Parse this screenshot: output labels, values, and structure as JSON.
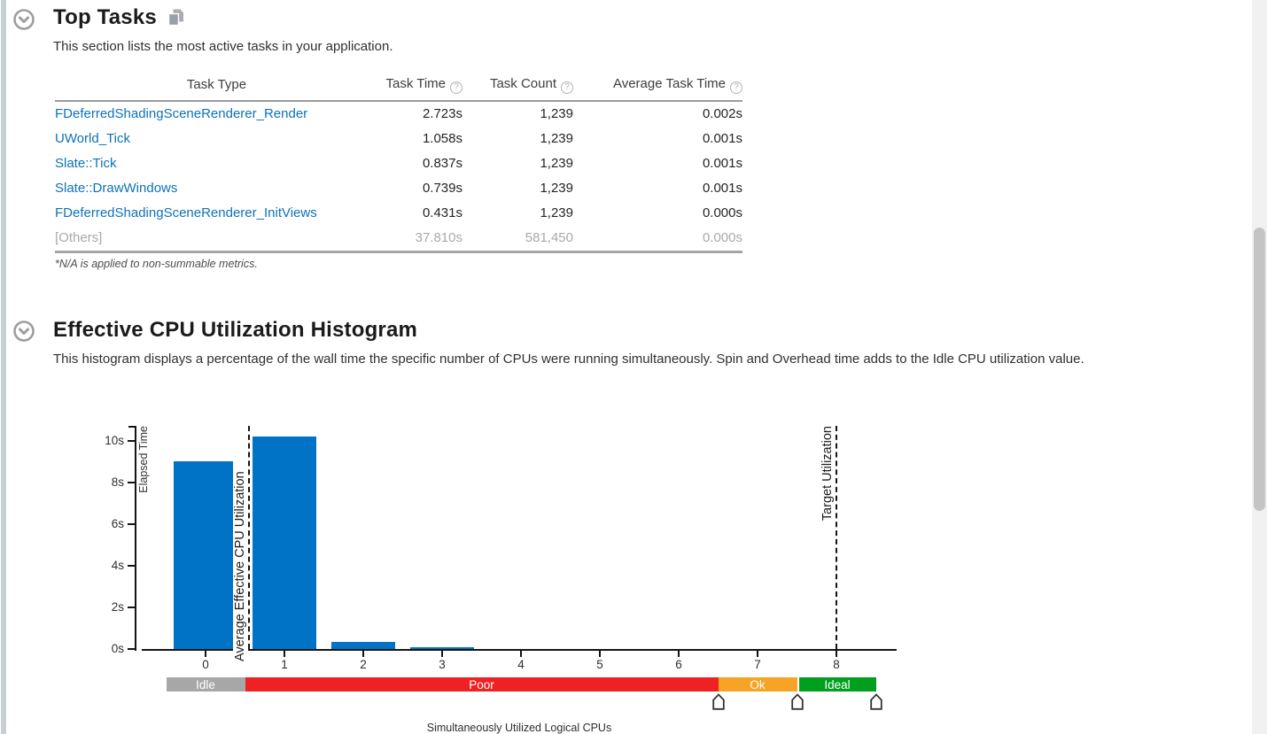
{
  "icons": {
    "help_glyph": "?"
  },
  "colors": {
    "link": "#0d72b8",
    "bar": "#0073c7",
    "left_strip": "#c8cfd4"
  },
  "top_tasks": {
    "title": "Top Tasks",
    "description": "This section lists the most active tasks in your application.",
    "table": {
      "columns": [
        {
          "label": "Task Type",
          "help": false
        },
        {
          "label": "Task Time",
          "help": true
        },
        {
          "label": "Task Count",
          "help": true
        },
        {
          "label": "Average Task Time",
          "help": true
        }
      ],
      "rows": [
        {
          "type": "FDeferredShadingSceneRenderer_Render",
          "time": "2.723s",
          "count": "1,239",
          "avg": "0.002s",
          "muted": false
        },
        {
          "type": "UWorld_Tick",
          "time": "1.058s",
          "count": "1,239",
          "avg": "0.001s",
          "muted": false
        },
        {
          "type": "Slate::Tick",
          "time": "0.837s",
          "count": "1,239",
          "avg": "0.001s",
          "muted": false
        },
        {
          "type": "Slate::DrawWindows",
          "time": "0.739s",
          "count": "1,239",
          "avg": "0.001s",
          "muted": false
        },
        {
          "type": "FDeferredShadingSceneRenderer_InitViews",
          "time": "0.431s",
          "count": "1,239",
          "avg": "0.000s",
          "muted": false
        },
        {
          "type": "[Others]",
          "time": "37.810s",
          "count": "581,450",
          "avg": "0.000s",
          "muted": true
        }
      ],
      "footnote": "*N/A is applied to non-summable metrics."
    }
  },
  "histogram_section": {
    "title": "Effective CPU Utilization Histogram",
    "description": "This histogram displays a percentage of the wall time the specific number of CPUs were running simultaneously. Spin and Overhead time adds to the Idle CPU utilization value."
  },
  "chart_data": {
    "type": "bar",
    "title": "Effective CPU Utilization Histogram",
    "xlabel": "Simultaneously Utilized Logical CPUs",
    "ylabel": "Elapsed Time",
    "categories": [
      0,
      1,
      2,
      3,
      4,
      5,
      6,
      7,
      8
    ],
    "values": [
      9.0,
      10.2,
      0.35,
      0.1,
      0,
      0,
      0,
      0,
      0
    ],
    "ylim": [
      0,
      10.8
    ],
    "xlim": [
      -0.8,
      8.8
    ],
    "grid": false,
    "legend": "none",
    "yticks": [
      "0s",
      "2s",
      "4s",
      "6s",
      "8s",
      "10s"
    ],
    "ytick_values": [
      0,
      2,
      4,
      6,
      8,
      10
    ],
    "bar_color": "#0073c7",
    "annotations": [
      {
        "label": "Average Effective CPU Utilization",
        "x": 0.55
      },
      {
        "label": "Target Utilization",
        "x": 8
      }
    ],
    "utilization_bands": [
      {
        "label": "Idle",
        "from": -0.5,
        "to": 0.5,
        "color": "#a7a7a7"
      },
      {
        "label": "Poor",
        "from": 0.5,
        "to": 6.5,
        "color": "#ee2222"
      },
      {
        "label": "Ok",
        "from": 6.5,
        "to": 7.5,
        "color": "#f7a325"
      },
      {
        "label": "Ideal",
        "from": 7.5,
        "to": 8.5,
        "color": "#00a01e"
      }
    ],
    "handles_x": [
      6.5,
      7.5,
      8.5
    ]
  }
}
